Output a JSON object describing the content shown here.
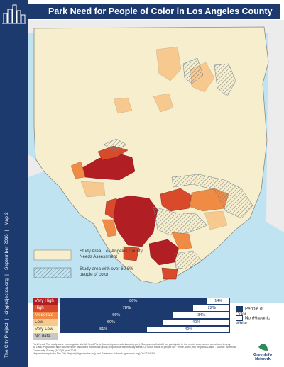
{
  "title": "Park Need for People of Color in Los Angeles County",
  "side_text": [
    "The City Project",
    "cityprojectca.org",
    "September 2016",
    "Map 2"
  ],
  "legend": {
    "study_area": "Study Area, Los Angeles County Needs Assessment",
    "over_poc": "Study area with over 60.8% people of color"
  },
  "need_levels": [
    {
      "label": "Very High",
      "color": "#b11e24"
    },
    {
      "label": "High",
      "color": "#d94a2b"
    },
    {
      "label": "Moderate",
      "color": "#f08b46"
    },
    {
      "label": "Low",
      "color": "#f7c98e"
    },
    {
      "label": "Very Low",
      "color": "#fbf1c8"
    },
    {
      "label": "No data",
      "color": "#c8c8c8"
    }
  ],
  "chart_data": {
    "type": "bar",
    "categories": [
      "Very High",
      "High",
      "Moderate",
      "Low",
      "Very Low"
    ],
    "series": [
      {
        "name": "People of Color",
        "values": [
          86,
          78,
          66,
          60,
          51
        ],
        "labels": [
          "86%",
          "78%",
          "66%",
          "60%",
          "51%"
        ]
      },
      {
        "name": "NonHispanic White",
        "values": [
          14,
          22,
          34,
          40,
          49
        ],
        "labels": [
          "14%",
          "22%",
          "34%",
          "40%",
          "49%"
        ]
      }
    ],
    "xlim": [
      0,
      100
    ]
  },
  "chart_legend": {
    "poc": "People of Color",
    "white": "NonHispanic White"
  },
  "colors": {
    "navy": "#1d3a6e",
    "water": "#bfe3f1",
    "land": "#f6eecd"
  },
  "footer": {
    "p1": "Park Need: The study area: Los Angeles. We All Need Parks (lacountyparkneeds.lacounty.gov). Study areas that did not participate in the needs assessment are shown in grey.",
    "p2": "All Data: Population and race/ethnicity calculated from block group proportions within study areas. Of color: totals of people not \"White Alone, not Hispanic/Latino\". Source: American Community Survey (ACS) 5-year 2014.",
    "p3": "Map and analysis by The City Project (cityprojectca.org) and GreenInfo Network (greeninfo.org) 09.07.16 EA"
  },
  "logo_text": "GreenInfo Network"
}
